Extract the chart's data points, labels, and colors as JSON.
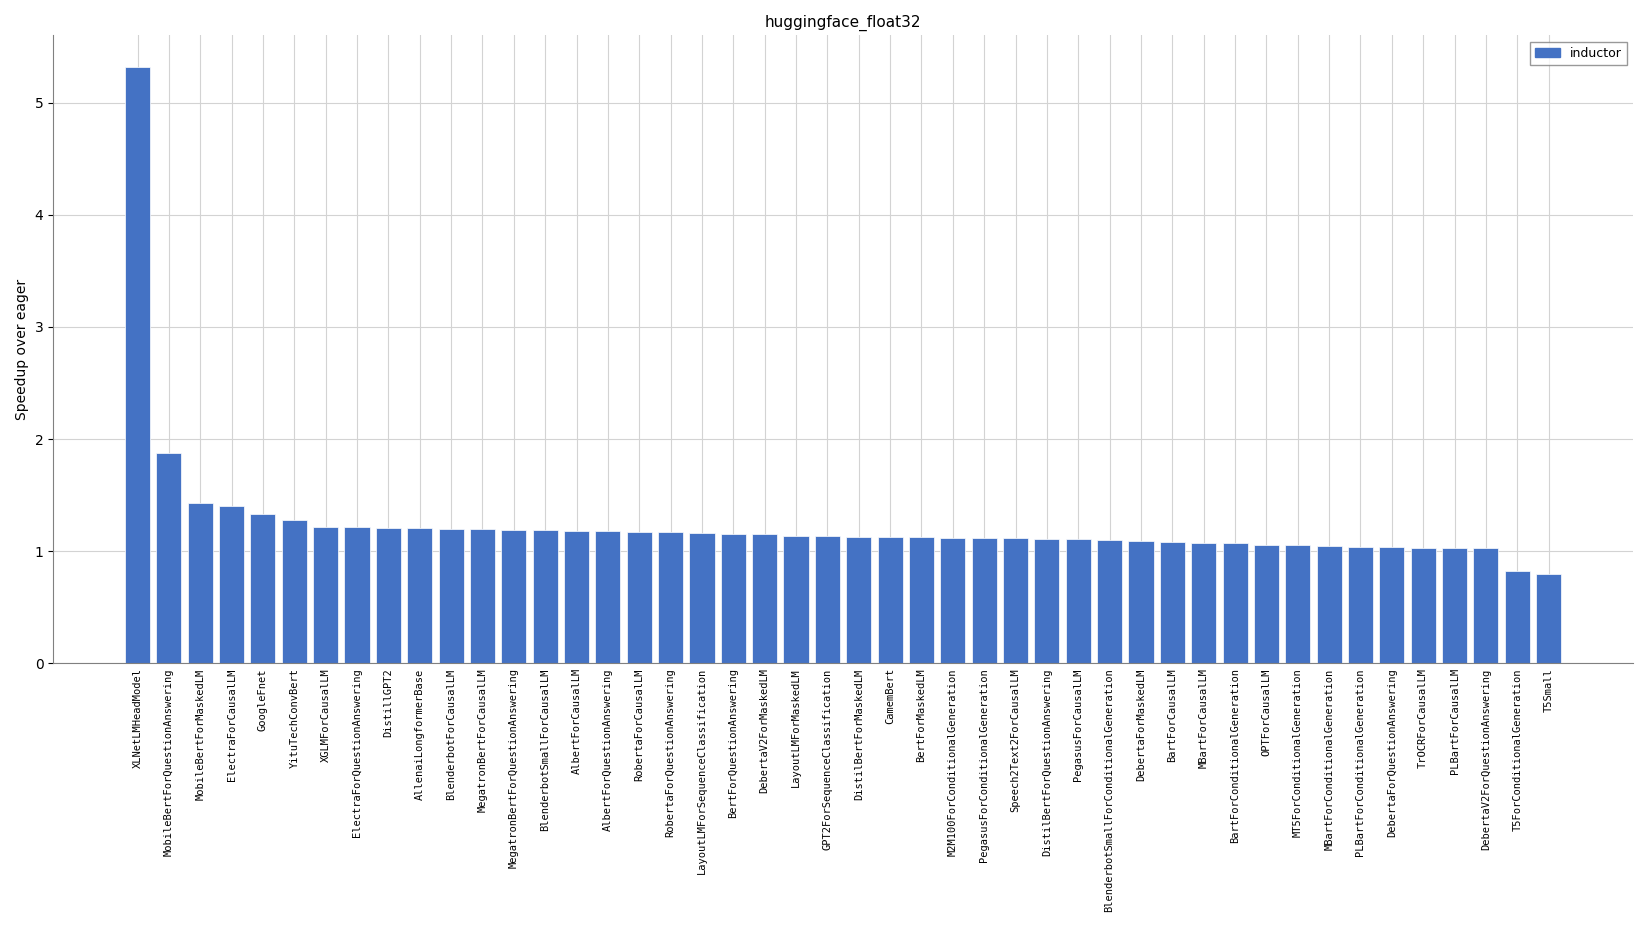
{
  "title": "huggingface_float32",
  "ylabel": "Speedup over eager",
  "bar_color": "#4472C4",
  "legend_label": "inductor",
  "categories": [
    "XLNetLMHeadModel",
    "MobileBertForQuestionAnswering",
    "MobileBertForMaskedLM",
    "ElectraForCausalLM",
    "GoogleFnet",
    "YituTechConvBert",
    "XGLMForCausalLM",
    "ElectraForQuestionAnswering",
    "DistillGPT2",
    "AllenaiLongformerBase",
    "BlenderbotForCausalLM",
    "MegatronBertForCausalLM",
    "MegatronBertForQuestionAnswering",
    "BlenderbotSmallForCausalLM",
    "AlbertForCausalLM",
    "AlbertForQuestionAnswering",
    "RobertaForCausalLM",
    "RobertaForQuestionAnswering",
    "LayoutLMForSequenceClassification",
    "BertForQuestionAnswering",
    "DebertaV2ForMaskedLM",
    "LayoutLMForMaskedLM",
    "GPT2ForSequenceClassification",
    "DistilBertForMaskedLM",
    "CamemBert",
    "BertForMaskedLM",
    "M2M100ForConditionalGeneration",
    "PegasusForConditionalGeneration",
    "Speech2Text2ForCausalLM",
    "DistilBertForQuestionAnswering",
    "PegasusForCausalLM",
    "BlenderbotSmallForConditionalGeneration",
    "DebertaForMaskedLM",
    "BartForCausalLM",
    "MBartForCausalLM",
    "BartForConditionalGeneration",
    "OPTForCausalLM",
    "MT5ForConditionalGeneration",
    "MBartForConditionalGeneration",
    "PLBartForConditionalGeneration",
    "DebertaForQuestionAnswering",
    "TrOCRForCausalLM",
    "PLBartForCausalLM",
    "DebertaV2ForQuestionAnswering",
    "T5ForConditionalGeneration",
    "T5Small"
  ],
  "values": [
    5.32,
    1.88,
    1.43,
    1.4,
    1.33,
    1.28,
    1.22,
    1.22,
    1.21,
    1.21,
    1.2,
    1.2,
    1.19,
    1.19,
    1.18,
    1.18,
    1.17,
    1.17,
    1.16,
    1.15,
    1.15,
    1.14,
    1.14,
    1.13,
    1.13,
    1.13,
    1.12,
    1.12,
    1.12,
    1.11,
    1.11,
    1.1,
    1.09,
    1.08,
    1.07,
    1.07,
    1.06,
    1.06,
    1.05,
    1.04,
    1.04,
    1.03,
    1.03,
    1.03,
    0.82,
    0.8
  ],
  "ylim": [
    0,
    5.6
  ],
  "yticks": [
    0,
    1,
    2,
    3,
    4,
    5
  ],
  "figsize": [
    16.48,
    9.27
  ],
  "dpi": 100
}
